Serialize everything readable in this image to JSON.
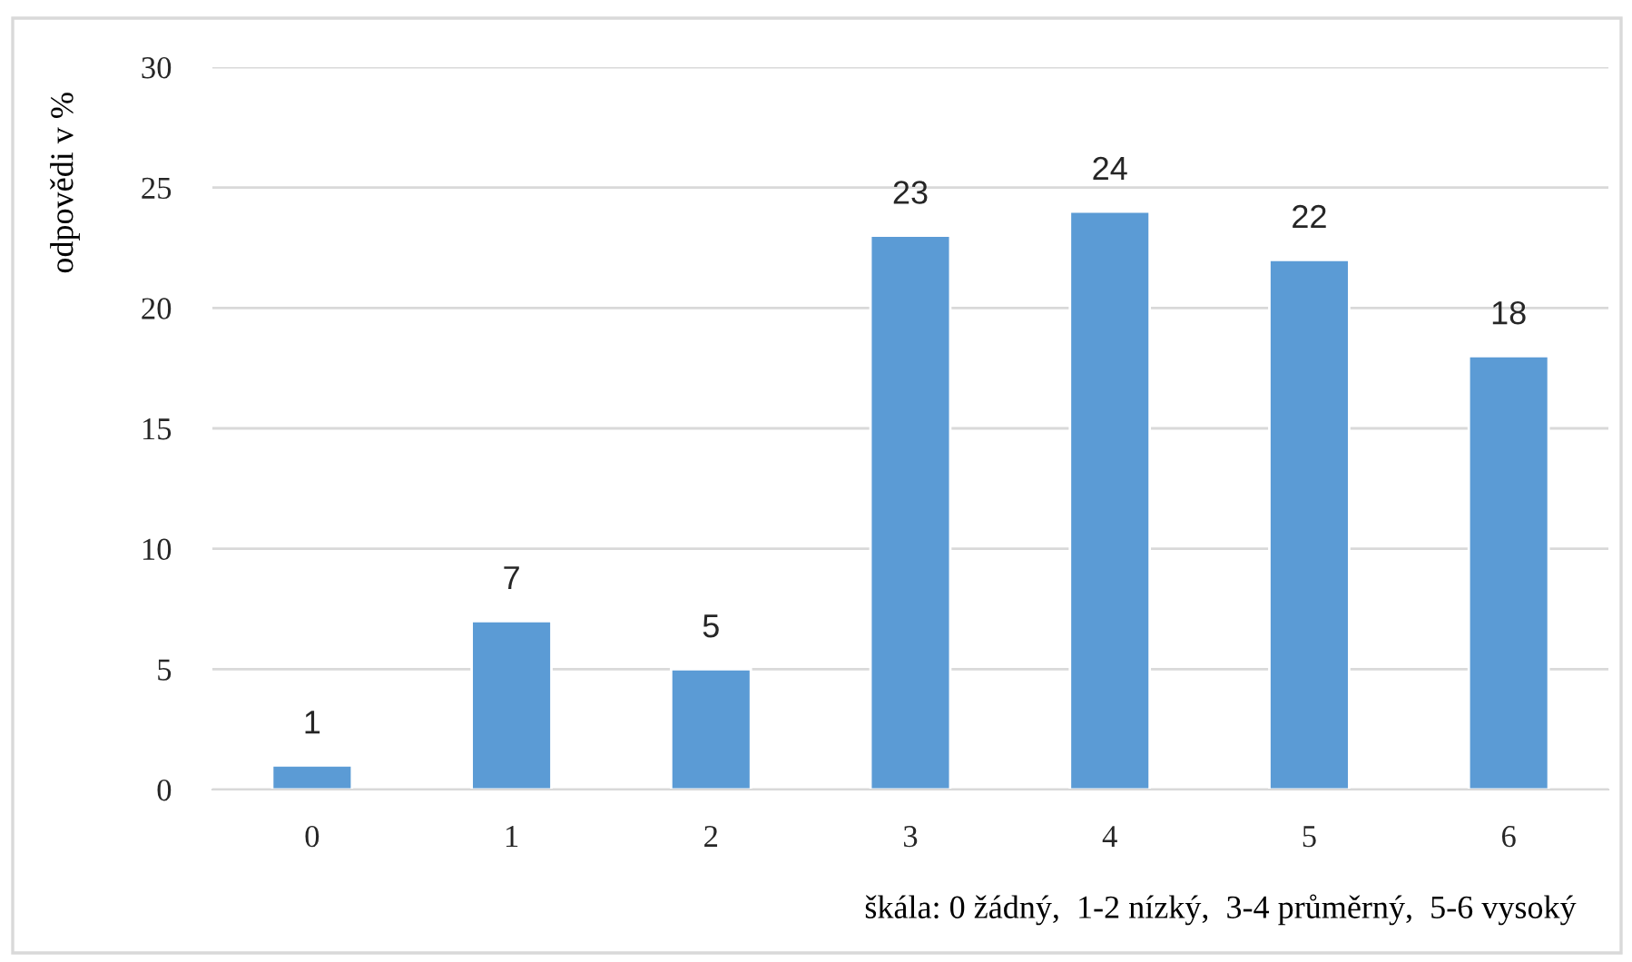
{
  "chart_data": {
    "type": "bar",
    "xlabel": "škála: 0 žádný,  1-2 nízký,  3-4 průměrný,  5-6 vysoký",
    "ylabel": "odpovědi v %",
    "categories": [
      "0",
      "1",
      "2",
      "3",
      "4",
      "5",
      "6"
    ],
    "values": [
      1,
      7,
      5,
      23,
      24,
      22,
      18
    ],
    "color": "#5b9bd5",
    "ylim": [
      0,
      30
    ],
    "yticks": [
      0,
      5,
      10,
      15,
      20,
      25,
      30
    ],
    "grid": "y",
    "data_labels": true,
    "legend": false
  }
}
